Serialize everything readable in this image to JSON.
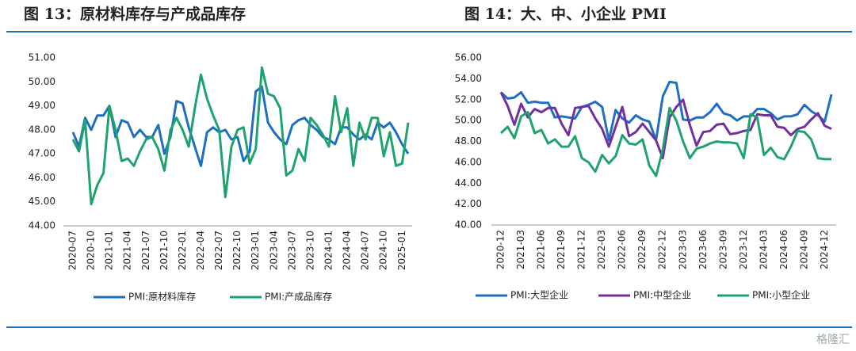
{
  "chart_data": [
    {
      "type": "line",
      "title": "图 13：原材料库存与产成品库存",
      "categories": [
        "2020-07",
        null,
        null,
        "2020-10",
        null,
        null,
        "2021-01",
        null,
        null,
        "2021-04",
        null,
        null,
        "2021-07",
        null,
        null,
        "2021-10",
        null,
        null,
        "2022-01",
        null,
        null,
        "2022-04",
        null,
        null,
        "2022-07",
        null,
        null,
        "2022-10",
        null,
        null,
        "2023-01",
        null,
        null,
        "2023-04",
        null,
        null,
        "2023-07",
        null,
        null,
        "2023-10",
        null,
        null,
        "2024-01",
        null,
        null,
        "2024-04",
        null,
        null,
        "2024-07",
        null,
        null,
        "2024-10",
        null,
        null,
        "2025-01",
        null
      ],
      "series": [
        {
          "name": "PMI:原材料库存",
          "color": "#1f6fc0",
          "values": [
            47.9,
            47.3,
            48.5,
            48.0,
            48.6,
            48.6,
            49.0,
            47.7,
            48.4,
            48.3,
            47.7,
            48.0,
            47.7,
            47.7,
            48.2,
            47.0,
            47.7,
            49.2,
            49.1,
            48.1,
            47.3,
            46.5,
            47.9,
            48.1,
            47.9,
            48.0,
            47.6,
            47.7,
            46.7,
            47.1,
            49.6,
            49.8,
            48.3,
            47.9,
            47.6,
            47.4,
            48.2,
            48.4,
            48.5,
            48.2,
            48.0,
            47.7,
            47.6,
            47.4,
            48.1,
            48.1,
            47.8,
            47.6,
            47.8,
            47.6,
            48.3,
            48.1,
            48.3,
            47.9,
            47.4,
            47.0
          ]
        },
        {
          "name": "PMI:产成品库存",
          "color": "#1ea36e",
          "values": [
            47.6,
            47.1,
            48.4,
            44.9,
            45.7,
            46.2,
            49.0,
            48.0,
            46.7,
            46.8,
            46.5,
            47.1,
            47.6,
            47.7,
            47.2,
            46.3,
            48.0,
            48.5,
            48.0,
            47.3,
            48.9,
            50.3,
            49.3,
            48.6,
            48.0,
            45.2,
            47.3,
            48.0,
            48.1,
            46.6,
            47.2,
            50.6,
            49.5,
            49.4,
            48.9,
            46.1,
            46.3,
            47.2,
            46.7,
            48.5,
            48.2,
            47.8,
            47.3,
            49.4,
            47.9,
            48.9,
            46.5,
            48.3,
            47.6,
            48.5,
            48.5,
            46.9,
            47.9,
            46.5,
            46.6,
            48.3
          ]
        }
      ],
      "ylim": [
        44,
        51
      ],
      "yticks": [
        {
          "value": 44,
          "label": "44.00"
        },
        {
          "value": 45,
          "label": "45.00"
        },
        {
          "value": 46,
          "label": "46.00"
        },
        {
          "value": 47,
          "label": "47.00"
        },
        {
          "value": 48,
          "label": "48.00"
        },
        {
          "value": 49,
          "label": "49.00"
        },
        {
          "value": 50,
          "label": "50.00"
        },
        {
          "value": 51,
          "label": "51.00"
        }
      ]
    },
    {
      "type": "line",
      "title": "图 14：大、中、小企业 PMI",
      "categories": [
        "2020-12",
        null,
        null,
        "2021-03",
        null,
        null,
        "2021-06",
        null,
        null,
        "2021-09",
        null,
        null,
        "2021-12",
        null,
        null,
        "2022-03",
        null,
        null,
        "2022-06",
        null,
        null,
        "2022-09",
        null,
        null,
        "2022-12",
        null,
        null,
        "2023-03",
        null,
        null,
        "2023-06",
        null,
        null,
        "2023-09",
        null,
        null,
        "2023-12",
        null,
        null,
        "2024-03",
        null,
        null,
        "2024-06",
        null,
        null,
        "2024-09",
        null,
        null,
        "2024-12",
        null
      ],
      "series": [
        {
          "name": "PMI:大型企业",
          "color": "#1f6fc0",
          "values": [
            52.7,
            52.1,
            52.2,
            52.7,
            51.7,
            51.8,
            51.7,
            51.7,
            50.3,
            50.4,
            50.3,
            50.2,
            51.3,
            51.5,
            51.8,
            51.3,
            48.1,
            51.0,
            50.2,
            49.8,
            50.5,
            50.1,
            49.9,
            48.1,
            52.3,
            53.7,
            53.6,
            50.1,
            50.0,
            50.3,
            50.3,
            50.8,
            51.6,
            50.7,
            50.5,
            50.0,
            50.4,
            50.4,
            51.1,
            51.1,
            50.7,
            50.1,
            50.4,
            50.4,
            50.6,
            51.5,
            50.9,
            50.5,
            49.9,
            52.5
          ]
        },
        {
          "name": "PMI:中型企业",
          "color": "#7030a0",
          "values": [
            52.7,
            51.4,
            49.6,
            51.6,
            50.3,
            51.1,
            50.8,
            51.2,
            51.2,
            49.7,
            48.6,
            51.2,
            51.3,
            51.4,
            50.2,
            49.2,
            47.5,
            49.4,
            51.3,
            48.5,
            48.9,
            49.7,
            48.9,
            48.1,
            46.4,
            50.3,
            51.3,
            52.0,
            49.6,
            47.6,
            48.9,
            49.0,
            49.6,
            49.7,
            48.7,
            48.8,
            49.0,
            49.1,
            50.6,
            50.5,
            50.5,
            49.4,
            49.3,
            48.6,
            49.2,
            49.4,
            50.1,
            50.7,
            49.5,
            49.2
          ]
        },
        {
          "name": "PMI:小型企业",
          "color": "#1ea36e",
          "values": [
            48.8,
            49.4,
            48.3,
            50.4,
            50.8,
            48.8,
            49.1,
            47.8,
            48.2,
            47.5,
            47.5,
            48.5,
            46.4,
            46.0,
            45.1,
            46.7,
            45.9,
            46.6,
            48.6,
            47.8,
            47.7,
            48.2,
            45.7,
            44.7,
            47.2,
            51.2,
            50.0,
            48.0,
            46.4,
            47.3,
            47.5,
            47.8,
            48.0,
            47.9,
            47.9,
            47.8,
            46.4,
            50.6,
            50.3,
            46.7,
            47.4,
            46.5,
            46.3,
            47.5,
            49.0,
            48.9,
            48.2,
            46.4,
            46.3,
            46.3
          ]
        }
      ],
      "ylim": [
        40,
        56
      ],
      "yticks": [
        {
          "value": 40,
          "label": "40.00"
        },
        {
          "value": 42,
          "label": "42.00"
        },
        {
          "value": 44,
          "label": "44.00"
        },
        {
          "value": 46,
          "label": "46.00"
        },
        {
          "value": 48,
          "label": "48.00"
        },
        {
          "value": 50,
          "label": "50.00"
        },
        {
          "value": 52,
          "label": "52.00"
        },
        {
          "value": 54,
          "label": "54.00"
        },
        {
          "value": 56,
          "label": "56.00"
        }
      ]
    }
  ],
  "watermark": "格隆汇"
}
